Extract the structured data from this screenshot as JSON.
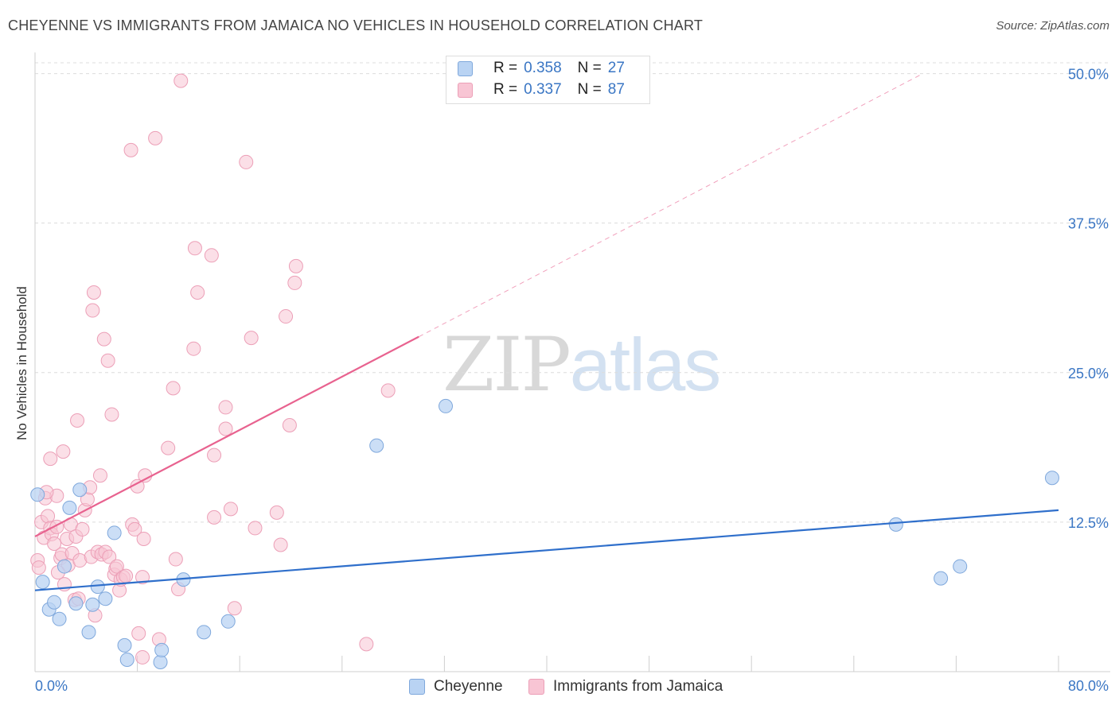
{
  "title": "CHEYENNE VS IMMIGRANTS FROM JAMAICA NO VEHICLES IN HOUSEHOLD CORRELATION CHART",
  "source": "Source: ZipAtlas.com",
  "watermark": {
    "zip": "ZIP",
    "atlas": "atlas"
  },
  "colors": {
    "cheyenne_fill": "#b9d3f3",
    "cheyenne_stroke": "#7fa8dc",
    "cheyenne_line": "#2f6fcb",
    "jamaica_fill": "#f8c5d4",
    "jamaica_stroke": "#ec9fb7",
    "jamaica_line": "#e8628f",
    "axis_label": "#3a76c4"
  },
  "legend": {
    "r_label": "R = ",
    "n_label": "N = ",
    "cheyenne": {
      "name": "Cheyenne",
      "r": "0.358",
      "n": "27"
    },
    "jamaica": {
      "name": "Immigrants from Jamaica",
      "r": "0.337",
      "n": "87"
    }
  },
  "chart_data": {
    "type": "scatter",
    "title": "CHEYENNE VS IMMIGRANTS FROM JAMAICA NO VEHICLES IN HOUSEHOLD CORRELATION CHART",
    "xlabel": "",
    "ylabel": "No Vehicles in Household",
    "xlim": [
      0,
      80
    ],
    "ylim": [
      0,
      51.5
    ],
    "x_tick_labels": {
      "min": "0.0%",
      "max": "80.0%"
    },
    "y_ticks": [
      12.5,
      25.0,
      37.5,
      50.0
    ],
    "y_tick_labels": [
      "12.5%",
      "25.0%",
      "37.5%",
      "50.0%"
    ],
    "series": [
      {
        "name": "Cheyenne",
        "points": [
          [
            0.2,
            14.8
          ],
          [
            0.6,
            7.5
          ],
          [
            1.1,
            5.2
          ],
          [
            1.5,
            5.8
          ],
          [
            1.9,
            4.4
          ],
          [
            2.7,
            13.7
          ],
          [
            2.3,
            8.8
          ],
          [
            3.2,
            5.7
          ],
          [
            3.5,
            15.2
          ],
          [
            4.2,
            3.3
          ],
          [
            4.5,
            5.6
          ],
          [
            4.9,
            7.1
          ],
          [
            5.5,
            6.1
          ],
          [
            6.2,
            11.6
          ],
          [
            7.0,
            2.2
          ],
          [
            7.2,
            1.0
          ],
          [
            9.8,
            0.8
          ],
          [
            9.9,
            1.8
          ],
          [
            11.6,
            7.7
          ],
          [
            13.2,
            3.3
          ],
          [
            15.1,
            4.2
          ],
          [
            26.7,
            18.9
          ],
          [
            32.1,
            22.2
          ],
          [
            67.3,
            12.3
          ],
          [
            70.8,
            7.8
          ],
          [
            72.3,
            8.8
          ],
          [
            79.5,
            16.2
          ]
        ],
        "trendline": {
          "x": [
            0,
            80
          ],
          "y": [
            6.8,
            13.5
          ]
        }
      },
      {
        "name": "Immigrants from Jamaica",
        "points": [
          [
            0.2,
            9.3
          ],
          [
            0.3,
            8.7
          ],
          [
            0.5,
            12.5
          ],
          [
            0.7,
            11.2
          ],
          [
            0.8,
            14.5
          ],
          [
            1.0,
            13.0
          ],
          [
            1.2,
            12.0
          ],
          [
            1.3,
            11.5
          ],
          [
            1.2,
            17.8
          ],
          [
            1.5,
            10.7
          ],
          [
            1.7,
            14.7
          ],
          [
            1.7,
            12.1
          ],
          [
            2.0,
            9.5
          ],
          [
            2.1,
            9.8
          ],
          [
            2.2,
            18.4
          ],
          [
            2.3,
            7.3
          ],
          [
            2.5,
            11.1
          ],
          [
            2.6,
            8.9
          ],
          [
            2.8,
            12.3
          ],
          [
            2.9,
            9.9
          ],
          [
            3.1,
            6.0
          ],
          [
            3.2,
            11.3
          ],
          [
            3.3,
            21.0
          ],
          [
            3.4,
            6.1
          ],
          [
            3.5,
            9.3
          ],
          [
            3.7,
            11.9
          ],
          [
            3.9,
            13.5
          ],
          [
            4.1,
            14.4
          ],
          [
            4.3,
            15.4
          ],
          [
            4.4,
            9.6
          ],
          [
            4.5,
            30.2
          ],
          [
            4.6,
            31.7
          ],
          [
            4.7,
            4.7
          ],
          [
            4.9,
            10.0
          ],
          [
            5.1,
            16.4
          ],
          [
            5.2,
            9.8
          ],
          [
            5.4,
            27.8
          ],
          [
            5.5,
            10.0
          ],
          [
            5.7,
            26.0
          ],
          [
            5.8,
            9.6
          ],
          [
            6.0,
            21.5
          ],
          [
            6.2,
            8.1
          ],
          [
            6.3,
            8.6
          ],
          [
            6.4,
            8.8
          ],
          [
            6.6,
            6.8
          ],
          [
            6.7,
            7.7
          ],
          [
            6.9,
            7.9
          ],
          [
            7.1,
            8.0
          ],
          [
            7.5,
            43.6
          ],
          [
            7.6,
            12.3
          ],
          [
            7.8,
            11.9
          ],
          [
            8.0,
            15.5
          ],
          [
            8.1,
            3.2
          ],
          [
            8.4,
            7.9
          ],
          [
            8.5,
            11.1
          ],
          [
            8.6,
            16.4
          ],
          [
            8.4,
            1.2
          ],
          [
            9.4,
            44.6
          ],
          [
            9.7,
            2.7
          ],
          [
            10.4,
            18.7
          ],
          [
            10.8,
            23.7
          ],
          [
            11.0,
            9.4
          ],
          [
            11.2,
            6.9
          ],
          [
            11.4,
            49.4
          ],
          [
            12.4,
            27.0
          ],
          [
            12.5,
            35.4
          ],
          [
            12.7,
            31.7
          ],
          [
            13.8,
            34.8
          ],
          [
            14.0,
            12.9
          ],
          [
            14.0,
            18.1
          ],
          [
            14.9,
            22.1
          ],
          [
            14.9,
            20.3
          ],
          [
            15.3,
            13.6
          ],
          [
            15.6,
            5.3
          ],
          [
            16.5,
            42.6
          ],
          [
            16.9,
            27.9
          ],
          [
            17.2,
            12.0
          ],
          [
            18.9,
            13.3
          ],
          [
            19.2,
            10.6
          ],
          [
            19.6,
            29.7
          ],
          [
            19.9,
            20.6
          ],
          [
            20.3,
            32.5
          ],
          [
            20.4,
            33.9
          ],
          [
            25.9,
            2.3
          ],
          [
            27.6,
            23.5
          ],
          [
            1.8,
            8.3
          ],
          [
            0.9,
            15.0
          ]
        ],
        "trendline": {
          "x": [
            0,
            30
          ],
          "y": [
            11.3,
            28.0
          ]
        },
        "trendline_extension": {
          "x": [
            30,
            69.4
          ],
          "y": [
            28.0,
            50.0
          ]
        }
      }
    ]
  }
}
